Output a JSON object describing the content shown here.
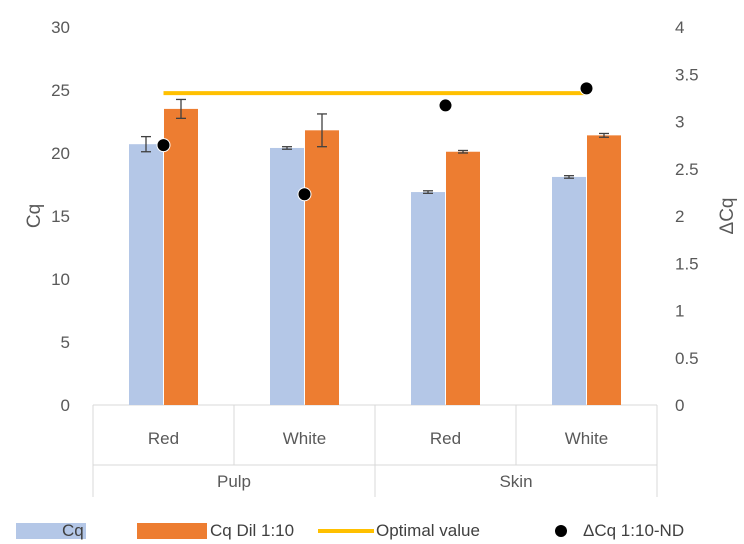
{
  "chart_data": {
    "type": "bar",
    "group_levels": {
      "inner": [
        "Red",
        "White",
        "Red",
        "White"
      ],
      "outer": [
        {
          "label": "Pulp",
          "span": 2
        },
        {
          "label": "Skin",
          "span": 2
        }
      ]
    },
    "ylabel": "Cq",
    "y2label": "ΔCq",
    "ylim": [
      0,
      30
    ],
    "yticks": [
      0,
      5,
      10,
      15,
      20,
      25,
      30
    ],
    "y2lim": [
      0,
      4
    ],
    "y2ticks": [
      "0",
      "0.5",
      "1",
      "1.5",
      "2",
      "2.5",
      "3",
      "3.5",
      "4"
    ],
    "grid": false,
    "legend_position": "bottom",
    "series": [
      {
        "name": "Cq",
        "type": "bar",
        "axis": "left",
        "color": "#B4C7E7",
        "values": [
          20.7,
          20.4,
          16.9,
          18.1
        ],
        "errors": [
          0.6,
          0.1,
          0.1,
          0.1
        ]
      },
      {
        "name": "Cq Dil 1:10",
        "type": "bar",
        "axis": "left",
        "color": "#ED7D31",
        "values": [
          23.5,
          21.8,
          20.1,
          21.4
        ],
        "errors": [
          0.75,
          1.3,
          0.1,
          0.15
        ]
      },
      {
        "name": "Optimal value",
        "type": "line",
        "axis": "right",
        "color": "#FFC000",
        "values": [
          3.3,
          3.3,
          3.3,
          3.3
        ]
      },
      {
        "name": "ΔCq  1:10-ND",
        "type": "scatter",
        "axis": "right",
        "color": "#000000",
        "values": [
          2.75,
          2.23,
          3.17,
          3.35
        ]
      }
    ]
  }
}
